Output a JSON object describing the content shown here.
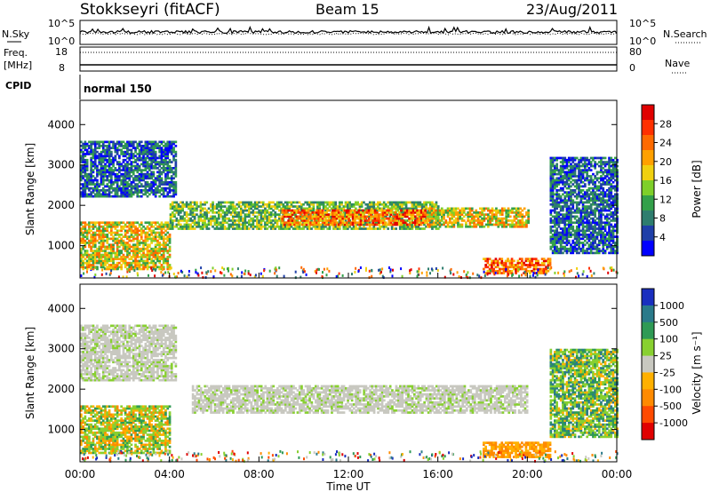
{
  "header": {
    "station": "Stokkseyri (fitACF)",
    "beam": "Beam 15",
    "date": "23/Aug/2011"
  },
  "summary_panel": {
    "nsky_label": "N.Sky",
    "nsearch_label": "N.Search",
    "noise_ticks_left": [
      "10^5",
      "10^0"
    ],
    "noise_ticks_right": [
      "10^5",
      "10^0"
    ],
    "freq_label": "Freq.",
    "freq_unit": "[MHz]",
    "freq_ticks": [
      "18",
      "8"
    ],
    "nave_label": "Nave",
    "nave_ticks": [
      "80",
      "0"
    ],
    "cpid_label": "CPID",
    "cpid_value": "normal 150"
  },
  "colors": {
    "power_scale": [
      "#0000ff",
      "#1f3fa8",
      "#2e7d6e",
      "#33a04a",
      "#7ecf2a",
      "#f0d010",
      "#ffa000",
      "#ff6a00",
      "#ff3000",
      "#e00000"
    ],
    "velocity_scale": [
      "#1a2fbf",
      "#2a7a8a",
      "#2f9a55",
      "#88d030",
      "#c8c8c0",
      "#ffb000",
      "#ff8a00",
      "#ff4a00",
      "#e00000"
    ]
  },
  "chart_data": [
    {
      "type": "heatmap",
      "name": "power",
      "xlabel": "",
      "ylabel": "Slant Range [km]",
      "xlim": [
        "00:00",
        "24:00"
      ],
      "ylim": [
        200,
        4600
      ],
      "yticks": [
        "1000",
        "2000",
        "3000",
        "4000"
      ],
      "colorbar": {
        "label": "Power [dB]",
        "ticks": [
          "4",
          "8",
          "12",
          "16",
          "20",
          "24",
          "28"
        ],
        "range": [
          0,
          32
        ]
      },
      "regions": [
        {
          "t0": 0.0,
          "t1": 4.3,
          "r0": 2200,
          "r1": 3600,
          "level": "low-mid"
        },
        {
          "t0": 0.0,
          "t1": 4.0,
          "r0": 400,
          "r1": 1600,
          "level": "mid-high"
        },
        {
          "t0": 4.0,
          "t1": 16.0,
          "r0": 1400,
          "r1": 2100,
          "level": "mid"
        },
        {
          "t0": 9.0,
          "t1": 15.5,
          "r0": 1500,
          "r1": 1900,
          "level": "high"
        },
        {
          "t0": 15.5,
          "t1": 20.0,
          "r0": 1450,
          "r1": 1950,
          "level": "mid-high"
        },
        {
          "t0": 18.0,
          "t1": 21.0,
          "r0": 300,
          "r1": 700,
          "level": "high"
        },
        {
          "t0": 21.0,
          "t1": 24.0,
          "r0": 800,
          "r1": 3200,
          "level": "low-mid"
        }
      ]
    },
    {
      "type": "heatmap",
      "name": "velocity",
      "xlabel": "Time UT",
      "ylabel": "Slant Range [km]",
      "xlim": [
        "00:00",
        "24:00"
      ],
      "xticks": [
        "00:00",
        "04:00",
        "08:00",
        "12:00",
        "16:00",
        "20:00",
        "00:00"
      ],
      "ylim": [
        200,
        4600
      ],
      "yticks": [
        "1000",
        "2000",
        "3000",
        "4000"
      ],
      "colorbar": {
        "label": "Velocity [m s⁻¹]",
        "ticks": [
          "1000",
          "500",
          "100",
          "25",
          "-25",
          "-100",
          "-500",
          "-1000"
        ],
        "range": [
          -1000,
          1000
        ]
      },
      "regions": [
        {
          "t0": 0.0,
          "t1": 4.3,
          "r0": 2200,
          "r1": 3600,
          "level": "ground-scatter"
        },
        {
          "t0": 0.0,
          "t1": 4.0,
          "r0": 400,
          "r1": 1600,
          "level": "green-orange"
        },
        {
          "t0": 5.0,
          "t1": 20.0,
          "r0": 1400,
          "r1": 2100,
          "level": "ground-scatter"
        },
        {
          "t0": 18.0,
          "t1": 21.0,
          "r0": 300,
          "r1": 700,
          "level": "orange"
        },
        {
          "t0": 21.0,
          "t1": 24.0,
          "r0": 800,
          "r1": 3000,
          "level": "green"
        }
      ]
    }
  ]
}
